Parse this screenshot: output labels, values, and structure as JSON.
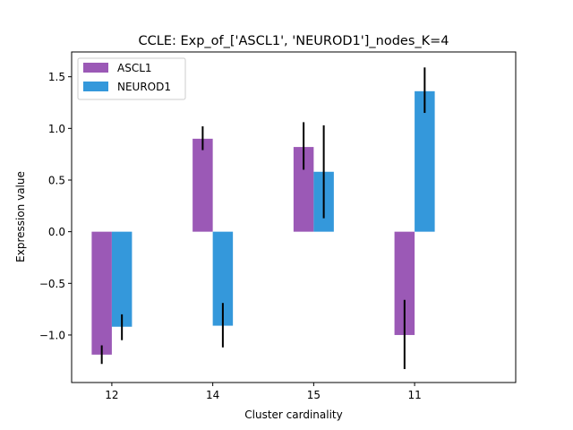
{
  "chart_data": {
    "type": "bar",
    "title": "CCLE: Exp_of_['ASCL1', 'NEUROD1']_nodes_K=4",
    "xlabel": "Cluster cardinality",
    "ylabel": "Expression value",
    "categories": [
      "12",
      "14",
      "15",
      "11"
    ],
    "series": [
      {
        "name": "ASCL1",
        "color": "#9b59b6",
        "values": [
          -1.19,
          0.9,
          0.82,
          -1.0
        ],
        "err_low": [
          -1.28,
          0.79,
          0.6,
          -1.33
        ],
        "err_high": [
          -1.1,
          1.02,
          1.06,
          -0.66
        ]
      },
      {
        "name": "NEUROD1",
        "color": "#3498db",
        "values": [
          -0.92,
          -0.91,
          0.58,
          1.36
        ],
        "err_low": [
          -1.05,
          -1.12,
          0.13,
          1.15
        ],
        "err_high": [
          -0.8,
          -0.69,
          1.03,
          1.59
        ]
      }
    ],
    "ylim": [
      -1.46,
      1.74
    ],
    "yticks": [
      -1.0,
      -0.5,
      0.0,
      0.5,
      1.0,
      1.5
    ],
    "ytick_labels": [
      "−1.0",
      "−0.5",
      "0.0",
      "0.5",
      "1.0",
      "1.5"
    ],
    "legend": "top-left",
    "grid": false
  }
}
